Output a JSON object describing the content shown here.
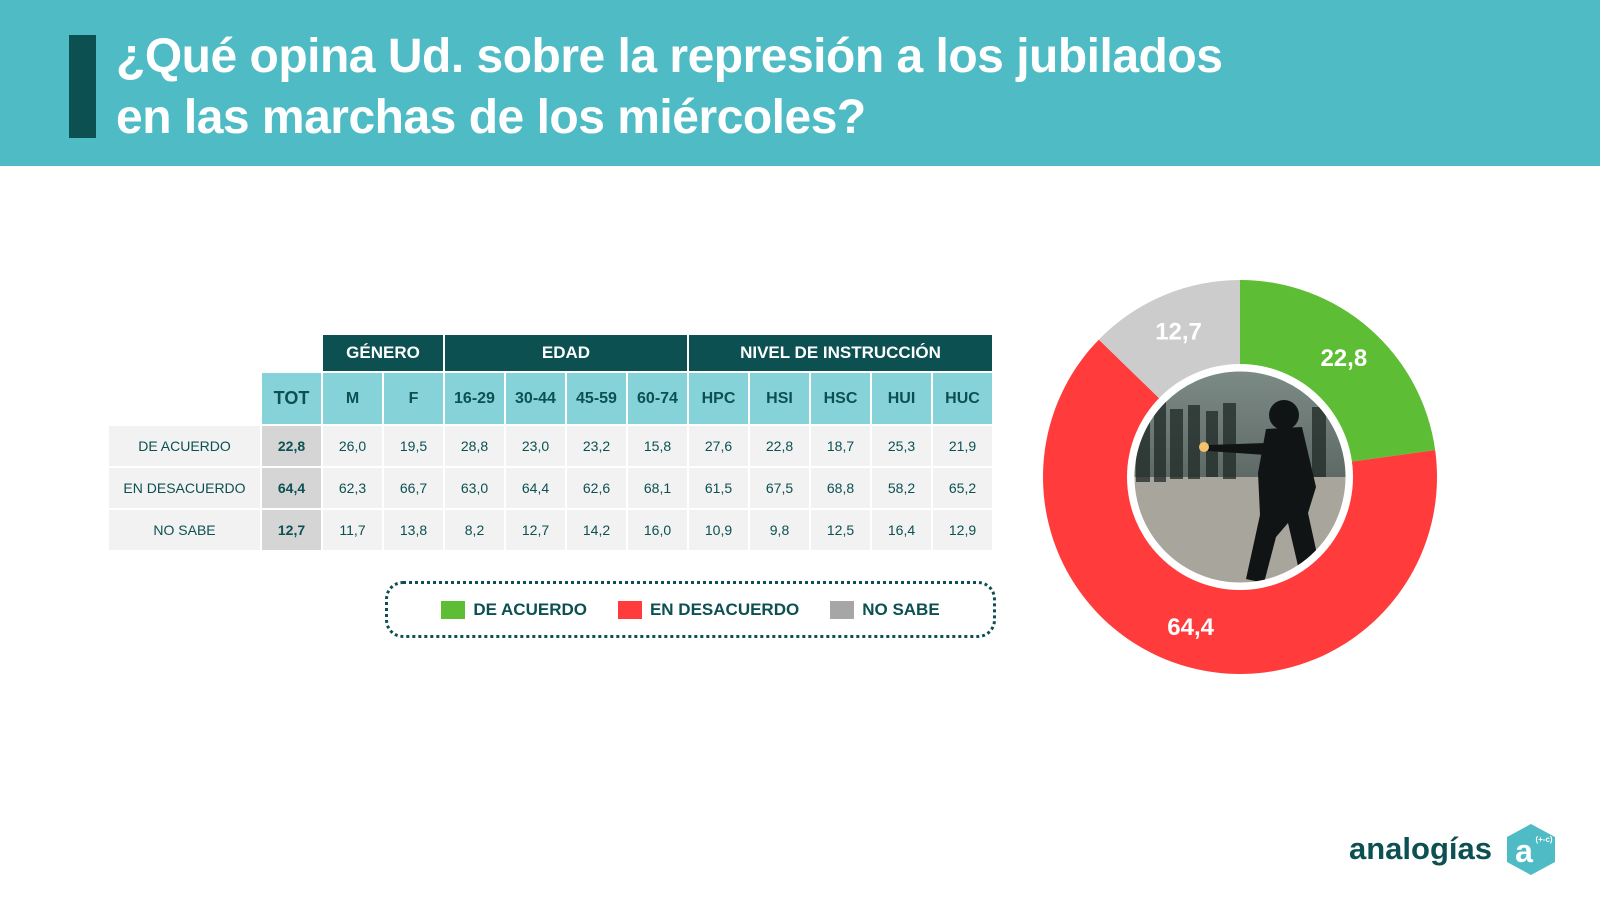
{
  "title": {
    "line1": "¿Qué opina Ud. sobre la represión a los jubilados",
    "line2": "en las marchas de los miércoles?"
  },
  "table": {
    "groups": [
      "GÉNERO",
      "EDAD",
      "NIVEL DE INSTRUCCIÓN"
    ],
    "columns": [
      "TOT",
      "M",
      "F",
      "16-29",
      "30-44",
      "45-59",
      "60-74",
      "HPC",
      "HSI",
      "HSC",
      "HUI",
      "HUC"
    ],
    "rows": [
      {
        "label": "DE ACUERDO",
        "values": [
          "22,8",
          "26,0",
          "19,5",
          "28,8",
          "23,0",
          "23,2",
          "15,8",
          "27,6",
          "22,8",
          "18,7",
          "25,3",
          "21,9"
        ]
      },
      {
        "label": "EN DESACUERDO",
        "values": [
          "64,4",
          "62,3",
          "66,7",
          "63,0",
          "64,4",
          "62,6",
          "68,1",
          "61,5",
          "67,5",
          "68,8",
          "58,2",
          "65,2"
        ]
      },
      {
        "label": "NO SABE",
        "values": [
          "12,7",
          "11,7",
          "13,8",
          "8,2",
          "12,7",
          "14,2",
          "16,0",
          "10,9",
          "9,8",
          "12,5",
          "16,4",
          "12,9"
        ]
      }
    ]
  },
  "legend": {
    "agree": "DE ACUERDO",
    "disagree": "EN DESACUERDO",
    "dontknow": "NO SABE"
  },
  "colors": {
    "agree": "#5dbd35",
    "disagree": "#ff3b3b",
    "dontknow": "#cccccc",
    "legend_dontknow": "#a6a6a6",
    "header": "#4fbbc5",
    "dark": "#0c5052"
  },
  "chart_data": {
    "type": "pie",
    "categories": [
      "DE ACUERDO",
      "EN DESACUERDO",
      "NO SABE"
    ],
    "values": [
      22.8,
      64.4,
      12.7
    ],
    "labels": [
      "22,8",
      "64,4",
      "12,7"
    ],
    "title": "¿Qué opina Ud. sobre la represión a los jubilados en las marchas de los miércoles?"
  },
  "brand": {
    "name": "analogías",
    "logo_letter": "a",
    "logo_superscript": "(+-c)"
  }
}
